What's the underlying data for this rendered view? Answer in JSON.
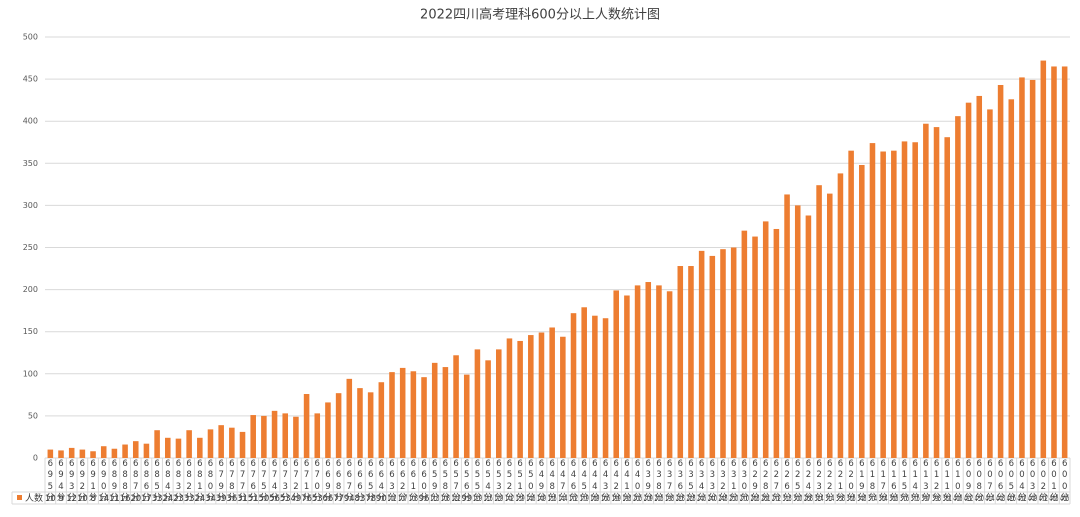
{
  "chart_data": {
    "type": "bar",
    "title": "2022四川高考理科600分以上人数统计图",
    "categories": [
      "695分",
      "694分",
      "693分",
      "692分",
      "691分",
      "690分",
      "689分",
      "688分",
      "687分",
      "686分",
      "685分",
      "684分",
      "683分",
      "682分",
      "681分",
      "680分",
      "679分",
      "678分",
      "677分",
      "676分",
      "675分",
      "674分",
      "673分",
      "672分",
      "671分",
      "670分",
      "669分",
      "668分",
      "667分",
      "666分",
      "665分",
      "664分",
      "663分",
      "662分",
      "661分",
      "660分",
      "659分",
      "658分",
      "657分",
      "656分",
      "655分",
      "654分",
      "653分",
      "652分",
      "651分",
      "650分",
      "649分",
      "648分",
      "647分",
      "646分",
      "645分",
      "644分",
      "643分",
      "642分",
      "641分",
      "640分",
      "639分",
      "638分",
      "637分",
      "636分",
      "635分",
      "634分",
      "633分",
      "632分",
      "631分",
      "630分",
      "629分",
      "628分",
      "627分",
      "626分",
      "625分",
      "624分",
      "623分",
      "622分",
      "621分",
      "620分",
      "619分",
      "618分",
      "617分",
      "616分",
      "615分",
      "614分",
      "613分",
      "612分",
      "611分",
      "610分",
      "609分",
      "608分",
      "607分",
      "606分",
      "605分",
      "604分",
      "603分",
      "602分",
      "601分",
      "600分"
    ],
    "series": [
      {
        "name": "人数",
        "color": "#ed7d31",
        "values": [
          10,
          9,
          12,
          10,
          8,
          14,
          11,
          16,
          20,
          17,
          33,
          24,
          23,
          33,
          24,
          34,
          39,
          36,
          31,
          51,
          50,
          56,
          53,
          49,
          76,
          53,
          66,
          77,
          94,
          83,
          78,
          90,
          102,
          107,
          103,
          96,
          113,
          108,
          122,
          99,
          129,
          116,
          129,
          142,
          139,
          146,
          149,
          155,
          144,
          172,
          179,
          169,
          166,
          199,
          193,
          205,
          209,
          205,
          198,
          228,
          228,
          246,
          240,
          248,
          250,
          270,
          263,
          281,
          272,
          313,
          300,
          288,
          324,
          314,
          338,
          365,
          348,
          374,
          364,
          365,
          376,
          375,
          397,
          393,
          381,
          406,
          422,
          430,
          414,
          443,
          426,
          452,
          449,
          472,
          465,
          465
        ]
      }
    ],
    "ylim": [
      0,
      500
    ],
    "yticks": [
      0,
      50,
      100,
      150,
      200,
      250,
      300,
      350,
      400,
      450,
      500
    ],
    "grid": true,
    "data_table": true
  }
}
